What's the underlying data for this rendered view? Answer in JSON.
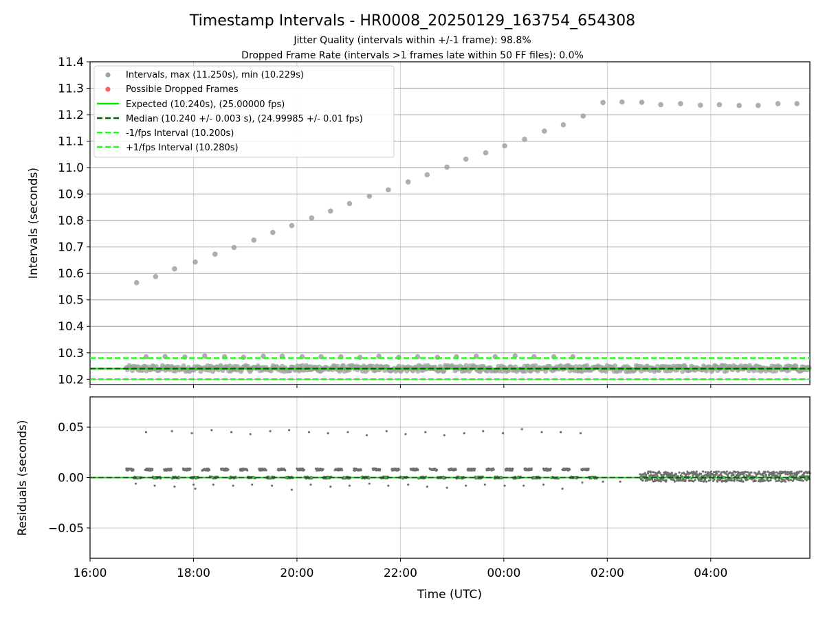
{
  "title": "Timestamp Intervals - HR0008_20250129_163754_654308",
  "subtitle_1": "Jitter Quality (intervals within +/-1 frame): 98.8%",
  "subtitle_2": "Dropped Frame Rate (intervals >1 frames late within 50 FF files): 0.0%",
  "colors": {
    "intervals": "#a0a0a0",
    "dropped": "#ff6060",
    "expected": "#00e600",
    "median": "#006400",
    "fps_bounds": "#1aff1a",
    "residuals": "#707070",
    "grid": "#b0b0b0"
  },
  "chart_data": [
    {
      "type": "scatter",
      "ylabel": "Intervals (seconds)",
      "xlim": [
        "2025-01-29T16:00",
        "2025-01-30T05:55"
      ],
      "ylim": [
        10.18,
        11.4
      ],
      "yticks": [
        "10.2",
        "10.3",
        "10.4",
        "10.5",
        "10.6",
        "10.7",
        "10.8",
        "10.9",
        "11.0",
        "11.1",
        "11.2",
        "11.3",
        "11.4"
      ],
      "grid": true,
      "legend_position": "top-left",
      "legend": [
        "Intervals, max (11.250s), min (10.229s)",
        "Possible Dropped Frames",
        "Expected (10.240s), (25.00000 fps)",
        "Median (10.240 +/- 0.003 s), (24.99985 +/- 0.01 fps)",
        "-1/fps Interval (10.200s)",
        "+1/fps Interval (10.280s)"
      ],
      "reference_lines": {
        "expected": 10.24,
        "median": 10.24,
        "minus_1_fps": 10.2,
        "plus_1_fps": 10.28
      },
      "series": [
        {
          "name": "Intervals, max (11.250s), min (10.229s)",
          "points": [
            [
              "2025-01-29T16:54",
              10.565
            ],
            [
              "2025-01-29T17:16",
              10.588
            ],
            [
              "2025-01-29T17:38",
              10.617
            ],
            [
              "2025-01-29T18:02",
              10.643
            ],
            [
              "2025-01-29T18:25",
              10.673
            ],
            [
              "2025-01-29T18:47",
              10.698
            ],
            [
              "2025-01-29T19:10",
              10.726
            ],
            [
              "2025-01-29T19:32",
              10.755
            ],
            [
              "2025-01-29T19:54",
              10.781
            ],
            [
              "2025-01-29T20:17",
              10.81
            ],
            [
              "2025-01-29T20:39",
              10.836
            ],
            [
              "2025-01-29T21:01",
              10.864
            ],
            [
              "2025-01-29T21:24",
              10.892
            ],
            [
              "2025-01-29T21:46",
              10.916
            ],
            [
              "2025-01-29T22:09",
              10.946
            ],
            [
              "2025-01-29T22:31",
              10.973
            ],
            [
              "2025-01-29T22:54",
              11.002
            ],
            [
              "2025-01-29T23:16",
              11.032
            ],
            [
              "2025-01-29T23:39",
              11.056
            ],
            [
              "2025-01-30T00:01",
              11.082
            ],
            [
              "2025-01-30T00:24",
              11.107
            ],
            [
              "2025-01-30T00:47",
              11.138
            ],
            [
              "2025-01-30T01:09",
              11.162
            ],
            [
              "2025-01-30T01:32",
              11.195
            ],
            [
              "2025-01-30T01:55",
              11.246
            ],
            [
              "2025-01-30T02:17",
              11.248
            ],
            [
              "2025-01-30T02:40",
              11.247
            ],
            [
              "2025-01-30T03:02",
              11.238
            ],
            [
              "2025-01-30T03:25",
              11.242
            ],
            [
              "2025-01-30T03:48",
              11.236
            ],
            [
              "2025-01-30T04:10",
              11.238
            ],
            [
              "2025-01-30T04:33",
              11.235
            ],
            [
              "2025-01-30T04:55",
              11.235
            ],
            [
              "2025-01-30T05:18",
              11.242
            ],
            [
              "2025-01-30T05:40",
              11.242
            ],
            [
              "2025-01-29T17:05",
              10.285
            ],
            [
              "2025-01-29T17:27",
              10.286
            ],
            [
              "2025-01-29T17:50",
              10.284
            ],
            [
              "2025-01-29T18:13",
              10.288
            ],
            [
              "2025-01-29T18:36",
              10.285
            ],
            [
              "2025-01-29T18:58",
              10.283
            ],
            [
              "2025-01-29T19:21",
              10.287
            ],
            [
              "2025-01-29T19:43",
              10.287
            ],
            [
              "2025-01-29T20:06",
              10.285
            ],
            [
              "2025-01-29T20:28",
              10.285
            ],
            [
              "2025-01-29T20:51",
              10.285
            ],
            [
              "2025-01-29T21:13",
              10.283
            ],
            [
              "2025-01-29T21:35",
              10.287
            ],
            [
              "2025-01-29T21:58",
              10.283
            ],
            [
              "2025-01-29T22:20",
              10.285
            ],
            [
              "2025-01-29T22:43",
              10.283
            ],
            [
              "2025-01-29T23:05",
              10.285
            ],
            [
              "2025-01-29T23:28",
              10.287
            ],
            [
              "2025-01-29T23:50",
              10.285
            ],
            [
              "2025-01-30T00:13",
              10.288
            ],
            [
              "2025-01-30T00:35",
              10.285
            ],
            [
              "2025-01-30T00:58",
              10.285
            ],
            [
              "2025-01-30T01:20",
              10.285
            ]
          ],
          "dense_band": {
            "from": "2025-01-29T16:42",
            "to": "2025-01-30T05:55",
            "y_min": 10.229,
            "y_max": 10.252
          }
        },
        {
          "name": "Possible Dropped Frames",
          "points": []
        }
      ]
    },
    {
      "type": "scatter",
      "xlabel": "Time (UTC)",
      "ylabel": "Residuals (seconds)",
      "xlim": [
        "2025-01-29T16:00",
        "2025-01-30T05:55"
      ],
      "ylim": [
        -0.08,
        0.08
      ],
      "xticks": [
        "16:00",
        "18:00",
        "20:00",
        "22:00",
        "00:00",
        "02:00",
        "04:00"
      ],
      "yticks": [
        "−0.05",
        "0.00",
        "0.05"
      ],
      "grid": true,
      "series": [
        {
          "name": "Residuals",
          "points": [
            [
              "2025-01-29T17:05",
              0.045
            ],
            [
              "2025-01-29T17:35",
              0.046
            ],
            [
              "2025-01-29T17:58",
              0.044
            ],
            [
              "2025-01-29T18:21",
              0.047
            ],
            [
              "2025-01-29T18:44",
              0.045
            ],
            [
              "2025-01-29T19:06",
              0.043
            ],
            [
              "2025-01-29T19:29",
              0.046
            ],
            [
              "2025-01-29T19:51",
              0.047
            ],
            [
              "2025-01-29T20:14",
              0.045
            ],
            [
              "2025-01-29T20:36",
              0.044
            ],
            [
              "2025-01-29T20:59",
              0.045
            ],
            [
              "2025-01-29T21:21",
              0.042
            ],
            [
              "2025-01-29T21:44",
              0.046
            ],
            [
              "2025-01-29T22:06",
              0.043
            ],
            [
              "2025-01-29T22:29",
              0.045
            ],
            [
              "2025-01-29T22:51",
              0.042
            ],
            [
              "2025-01-29T23:14",
              0.044
            ],
            [
              "2025-01-29T23:36",
              0.046
            ],
            [
              "2025-01-29T23:59",
              0.044
            ],
            [
              "2025-01-30T00:21",
              0.048
            ],
            [
              "2025-01-30T00:44",
              0.045
            ],
            [
              "2025-01-30T01:06",
              0.045
            ],
            [
              "2025-01-30T01:29",
              0.044
            ],
            [
              "2025-01-29T16:53",
              -0.006
            ],
            [
              "2025-01-29T17:15",
              -0.008
            ],
            [
              "2025-01-29T17:38",
              -0.009
            ],
            [
              "2025-01-29T18:00",
              -0.007
            ],
            [
              "2025-01-29T18:02",
              -0.011
            ],
            [
              "2025-01-29T18:23",
              -0.007
            ],
            [
              "2025-01-29T18:46",
              -0.008
            ],
            [
              "2025-01-29T19:08",
              -0.007
            ],
            [
              "2025-01-29T19:31",
              -0.008
            ],
            [
              "2025-01-29T19:54",
              -0.012
            ],
            [
              "2025-01-29T20:16",
              -0.007
            ],
            [
              "2025-01-29T20:39",
              -0.009
            ],
            [
              "2025-01-29T21:01",
              -0.008
            ],
            [
              "2025-01-29T21:24",
              -0.006
            ],
            [
              "2025-01-29T21:46",
              -0.008
            ],
            [
              "2025-01-29T22:09",
              -0.007
            ],
            [
              "2025-01-29T22:31",
              -0.009
            ],
            [
              "2025-01-29T22:54",
              -0.01
            ],
            [
              "2025-01-29T23:16",
              -0.008
            ],
            [
              "2025-01-29T23:38",
              -0.007
            ],
            [
              "2025-01-30T00:01",
              -0.008
            ],
            [
              "2025-01-30T00:23",
              -0.008
            ],
            [
              "2025-01-30T00:46",
              -0.007
            ],
            [
              "2025-01-30T01:08",
              -0.011
            ],
            [
              "2025-01-30T01:31",
              -0.005
            ],
            [
              "2025-01-30T01:55",
              -0.004
            ],
            [
              "2025-01-30T02:15",
              -0.004
            ]
          ],
          "clusters": {
            "every": "22 min",
            "from": "2025-01-29T16:42",
            "to": "2025-01-30T01:40",
            "upper_y": 0.008,
            "lower_y": 0.0
          },
          "dense_noise": {
            "from": "2025-01-30T02:38",
            "to": "2025-01-30T05:55",
            "y_min": -0.004,
            "y_max": 0.006
          }
        }
      ],
      "reference_lines": {
        "expected": 0.0,
        "median": 0.0
      }
    }
  ]
}
